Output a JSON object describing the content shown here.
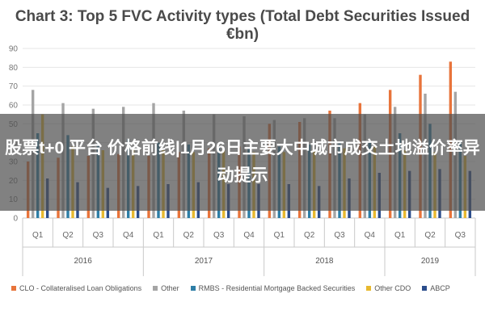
{
  "chart_data": {
    "type": "bar",
    "title": "Chart 3: Top 5 FVC Activity types (Total Debt Securities Issued €bn)",
    "ylim": [
      0,
      90
    ],
    "yticks": [
      0,
      10,
      20,
      30,
      40,
      50,
      60,
      70,
      80,
      90
    ],
    "categories": [
      "Q1",
      "Q2",
      "Q3",
      "Q4",
      "Q1",
      "Q2",
      "Q3",
      "Q4",
      "Q1",
      "Q2",
      "Q3",
      "Q4",
      "Q1",
      "Q2",
      "Q3"
    ],
    "years": [
      {
        "label": "2016",
        "span": [
          0,
          3
        ]
      },
      {
        "label": "2017",
        "span": [
          4,
          7
        ]
      },
      {
        "label": "2018",
        "span": [
          8,
          11
        ]
      },
      {
        "label": "2019",
        "span": [
          12,
          14
        ]
      }
    ],
    "legend_position": "bottom",
    "grid": true,
    "series": [
      {
        "name": "CLO - Collateralised Loan Obligations",
        "color": "#e8743b",
        "values": [
          30,
          32,
          33,
          34,
          33,
          35,
          37,
          38,
          50,
          51,
          57,
          61,
          68,
          76,
          83
        ]
      },
      {
        "name": "Other",
        "color": "#a5a5a5",
        "values": [
          68,
          61,
          58,
          59,
          61,
          57,
          55,
          54,
          52,
          53,
          53,
          55,
          59,
          66,
          67
        ]
      },
      {
        "name": "RMBS - Residential Mortgage Backed Securities",
        "color": "#2e7ea6",
        "values": [
          45,
          44,
          40,
          42,
          40,
          39,
          38,
          37,
          38,
          39,
          40,
          41,
          45,
          50,
          41
        ]
      },
      {
        "name": "Other CDO",
        "color": "#e8b92f",
        "values": [
          55,
          38,
          36,
          37,
          36,
          35,
          36,
          35,
          35,
          36,
          37,
          38,
          36,
          35,
          33
        ]
      },
      {
        "name": "ABCP",
        "color": "#2b4d8c",
        "values": [
          21,
          19,
          16,
          17,
          18,
          19,
          18,
          18,
          18,
          17,
          21,
          24,
          25,
          26,
          25
        ]
      }
    ]
  },
  "banner": {
    "text": "股票t+0 平台 价格前线|1月26日主要大中城市成交土地溢价率异动提示"
  }
}
